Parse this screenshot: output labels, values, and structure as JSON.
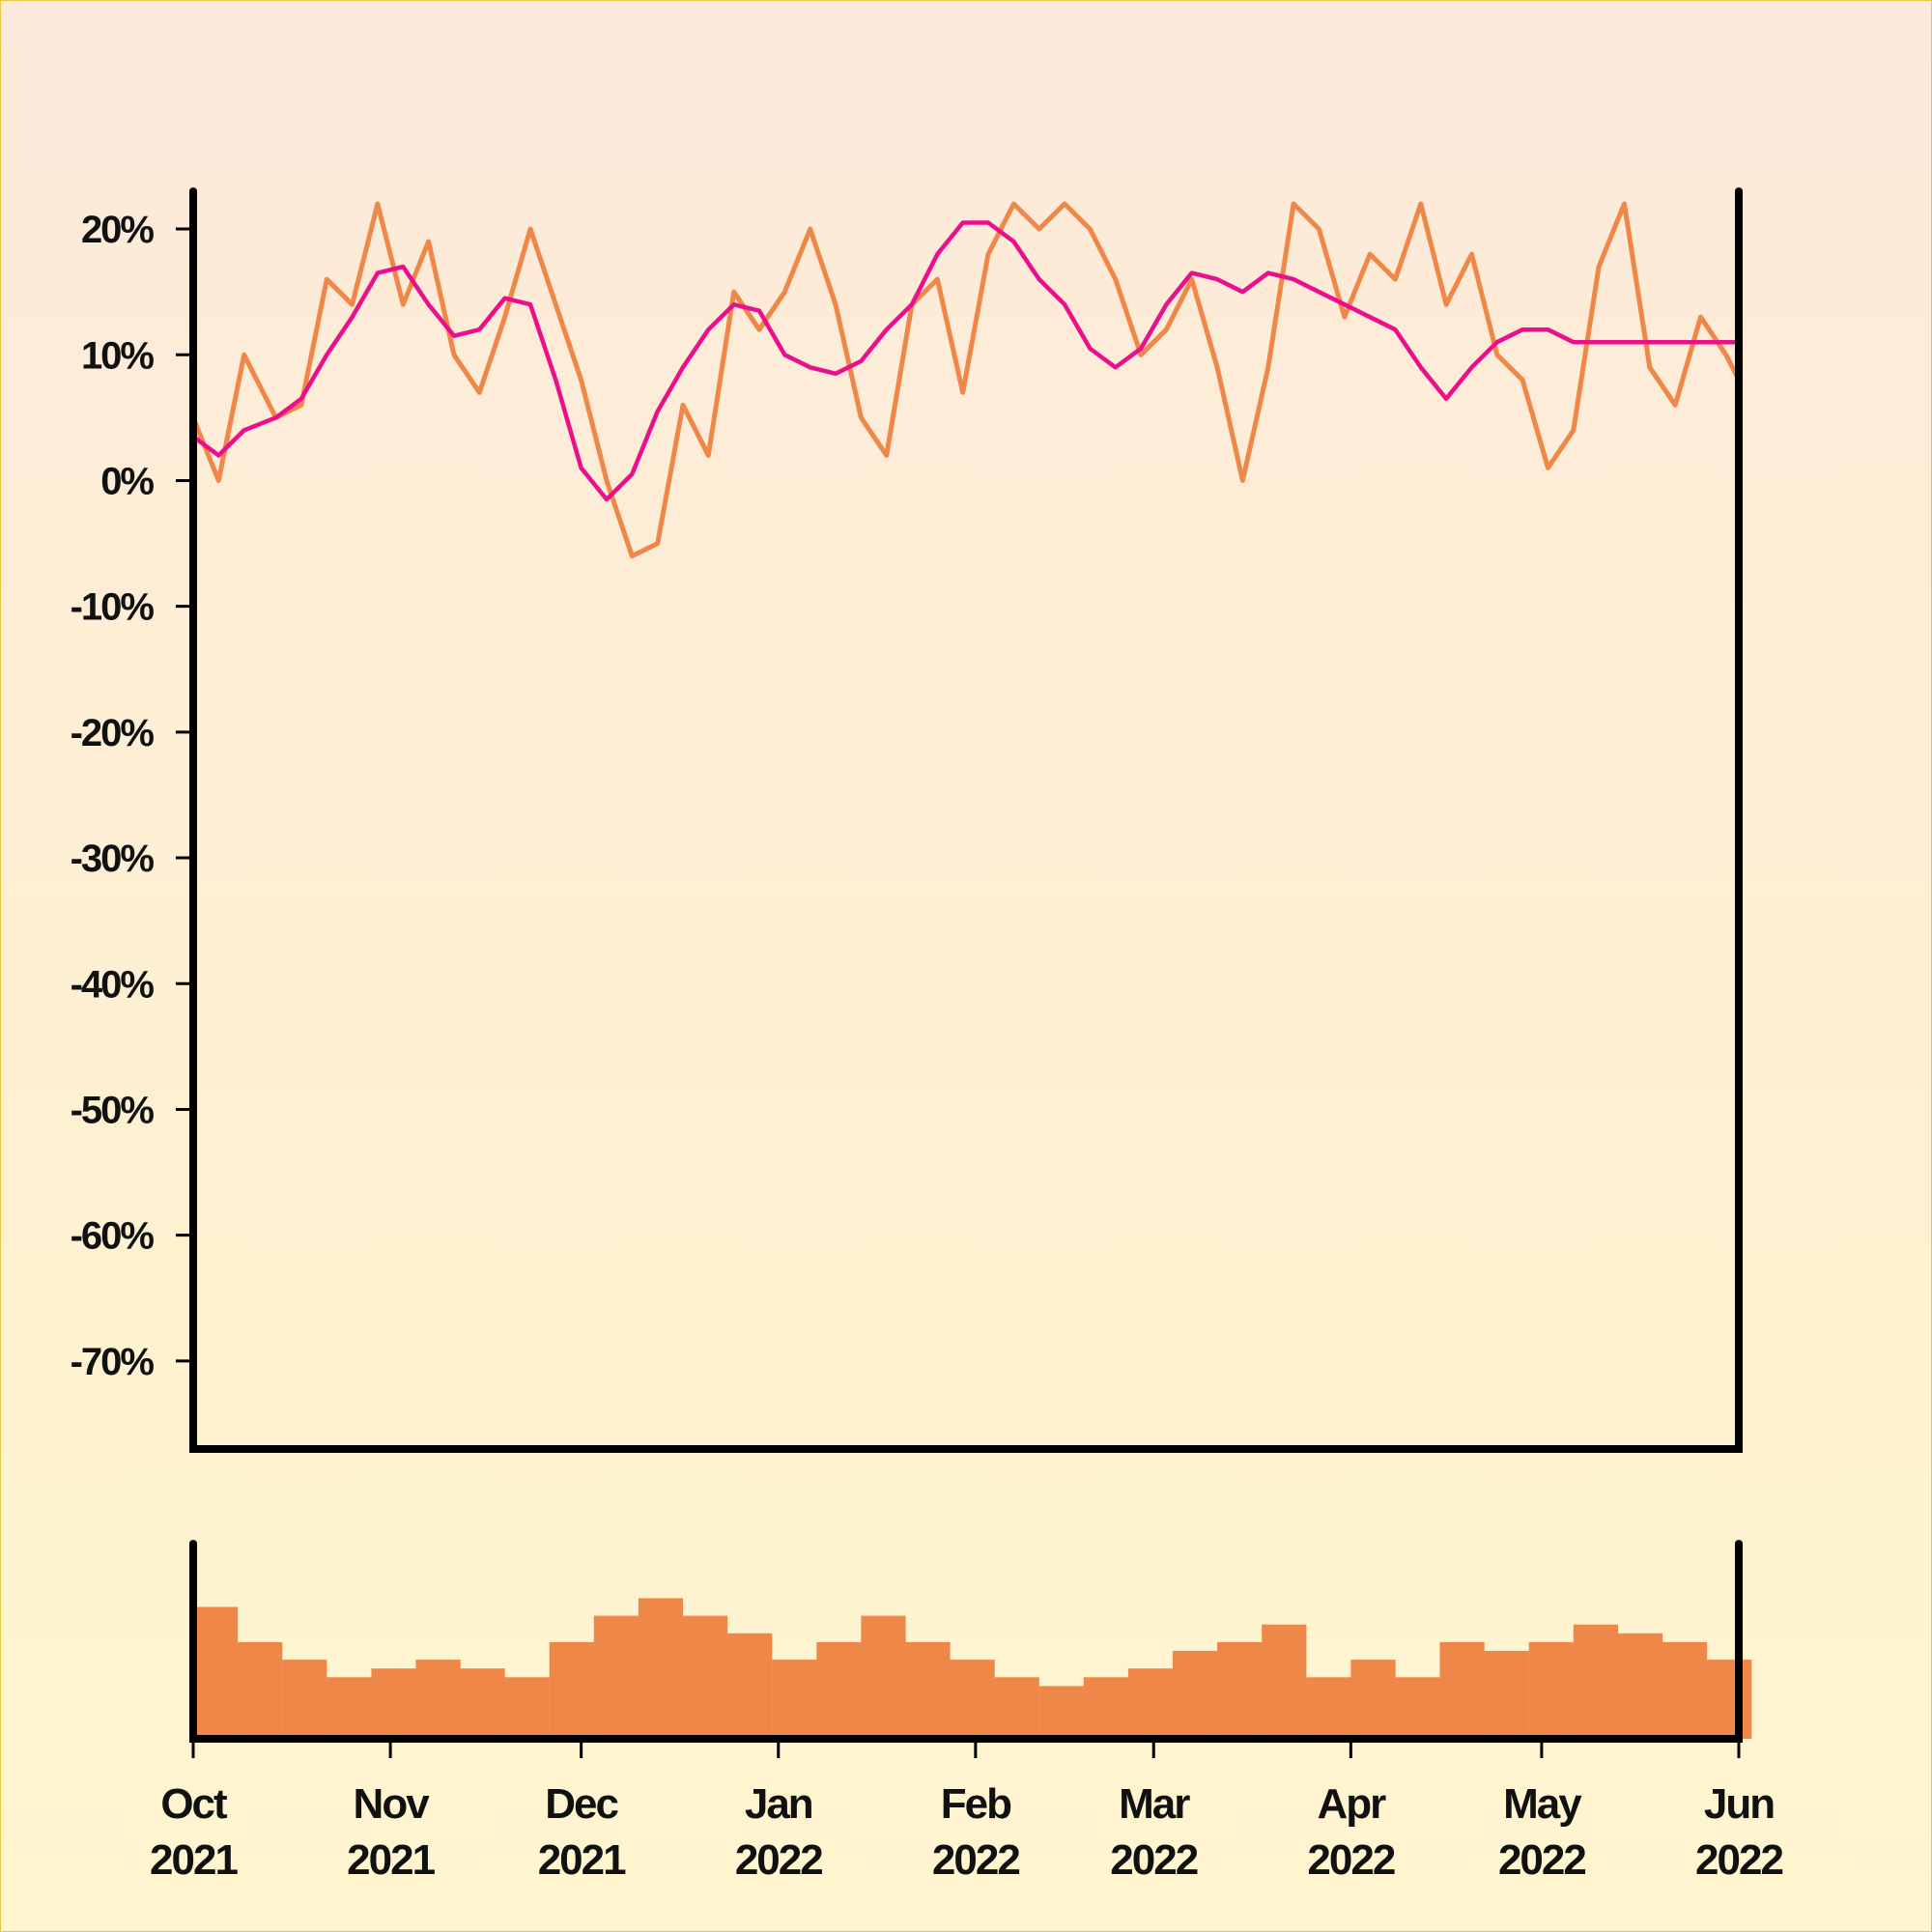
{
  "chart_data": [
    {
      "type": "line",
      "title": "",
      "xlabel": "",
      "ylabel": "",
      "xlim": [
        "2021-10-01",
        "2022-06-01"
      ],
      "ylim": [
        -77,
        23
      ],
      "grid": false,
      "yticks": [
        {
          "value": 20,
          "label": "20%"
        },
        {
          "value": 10,
          "label": "10%"
        },
        {
          "value": 0,
          "label": "0%"
        },
        {
          "value": -10,
          "label": "-10%"
        },
        {
          "value": -20,
          "label": "-20%"
        },
        {
          "value": -30,
          "label": "-30%"
        },
        {
          "value": -40,
          "label": "-40%"
        },
        {
          "value": -50,
          "label": "-50%"
        },
        {
          "value": -60,
          "label": "-60%"
        },
        {
          "value": -70,
          "label": "-70%"
        }
      ],
      "series": [
        {
          "color": "#ee8748",
          "x": [
            "2021-10-01",
            "2021-10-05",
            "2021-10-09",
            "2021-10-14",
            "2021-10-18",
            "2021-10-22",
            "2021-10-26",
            "2021-10-30",
            "2021-11-03",
            "2021-11-07",
            "2021-11-11",
            "2021-11-15",
            "2021-11-19",
            "2021-11-23",
            "2021-11-27",
            "2021-12-01",
            "2021-12-05",
            "2021-12-09",
            "2021-12-13",
            "2021-12-17",
            "2021-12-21",
            "2021-12-25",
            "2021-12-29",
            "2022-01-02",
            "2022-01-06",
            "2022-01-10",
            "2022-01-14",
            "2022-01-18",
            "2022-01-22",
            "2022-01-26",
            "2022-01-30",
            "2022-02-03",
            "2022-02-07",
            "2022-02-11",
            "2022-02-15",
            "2022-02-19",
            "2022-02-23",
            "2022-02-27",
            "2022-03-03",
            "2022-03-07",
            "2022-03-11",
            "2022-03-15",
            "2022-03-19",
            "2022-03-23",
            "2022-03-27",
            "2022-03-31",
            "2022-04-04",
            "2022-04-08",
            "2022-04-12",
            "2022-04-16",
            "2022-04-20",
            "2022-04-24",
            "2022-04-28",
            "2022-05-02",
            "2022-05-06",
            "2022-05-10",
            "2022-05-14",
            "2022-05-18",
            "2022-05-22",
            "2022-05-26",
            "2022-05-30",
            "2022-06-01"
          ],
          "values": [
            5,
            0,
            10,
            5,
            6,
            16,
            14,
            22,
            14,
            19,
            10,
            7,
            13,
            20,
            14,
            8,
            0,
            -6,
            -5,
            6,
            2,
            15,
            12,
            15,
            20,
            14,
            5,
            2,
            14,
            16,
            7,
            18,
            22,
            20,
            22,
            20,
            16,
            10,
            12,
            16,
            9,
            0,
            9,
            22,
            20,
            13,
            18,
            16,
            22,
            14,
            18,
            10,
            8,
            1,
            4,
            17,
            22,
            9,
            6,
            13,
            10,
            8
          ]
        },
        {
          "color": "#ec0f8c",
          "x": [
            "2021-10-01",
            "2021-10-05",
            "2021-10-09",
            "2021-10-14",
            "2021-10-18",
            "2021-10-22",
            "2021-10-26",
            "2021-10-30",
            "2021-11-03",
            "2021-11-07",
            "2021-11-11",
            "2021-11-15",
            "2021-11-19",
            "2021-11-23",
            "2021-11-27",
            "2021-12-01",
            "2021-12-05",
            "2021-12-09",
            "2021-12-13",
            "2021-12-17",
            "2021-12-21",
            "2021-12-25",
            "2021-12-29",
            "2022-01-02",
            "2022-01-06",
            "2022-01-10",
            "2022-01-14",
            "2022-01-18",
            "2022-01-22",
            "2022-01-26",
            "2022-01-30",
            "2022-02-03",
            "2022-02-07",
            "2022-02-11",
            "2022-02-15",
            "2022-02-19",
            "2022-02-23",
            "2022-02-27",
            "2022-03-03",
            "2022-03-07",
            "2022-03-11",
            "2022-03-15",
            "2022-03-19",
            "2022-03-23",
            "2022-03-27",
            "2022-03-31",
            "2022-04-04",
            "2022-04-08",
            "2022-04-12",
            "2022-04-16",
            "2022-04-20",
            "2022-04-24",
            "2022-04-28",
            "2022-05-02",
            "2022-05-06",
            "2022-05-10",
            "2022-05-14",
            "2022-05-18",
            "2022-05-22",
            "2022-05-26",
            "2022-05-30",
            "2022-06-01"
          ],
          "values": [
            3.5,
            2,
            4,
            5,
            6.5,
            10,
            13,
            16.5,
            17,
            14,
            11.5,
            12,
            14.5,
            14,
            8,
            1,
            -1.5,
            0.5,
            5.5,
            9,
            12,
            14,
            13.5,
            10,
            9,
            8.5,
            9.5,
            12,
            14,
            18,
            20.5,
            20.5,
            19,
            16,
            14,
            10.5,
            9,
            10.5,
            14,
            16.5,
            16,
            15,
            16.5,
            16,
            15,
            14,
            13,
            12,
            9,
            6.5,
            9,
            11,
            12,
            12,
            11,
            11,
            11,
            11,
            11,
            11,
            11,
            11
          ]
        }
      ]
    },
    {
      "type": "bar",
      "title": "",
      "xlabel": "",
      "ylabel": "",
      "xlim": [
        "2021-10-01",
        "2022-06-01"
      ],
      "grid": false,
      "color": "#ee8748",
      "x": [
        "2021-10-01",
        "2021-10-08",
        "2021-10-15",
        "2021-10-22",
        "2021-10-29",
        "2021-11-05",
        "2021-11-12",
        "2021-11-19",
        "2021-11-26",
        "2021-12-03",
        "2021-12-10",
        "2021-12-17",
        "2021-12-24",
        "2021-12-31",
        "2022-01-07",
        "2022-01-14",
        "2022-01-21",
        "2022-01-28",
        "2022-02-04",
        "2022-02-11",
        "2022-02-18",
        "2022-02-25",
        "2022-03-04",
        "2022-03-11",
        "2022-03-18",
        "2022-03-25",
        "2022-04-01",
        "2022-04-08",
        "2022-04-15",
        "2022-04-22",
        "2022-04-29",
        "2022-05-06",
        "2022-05-13",
        "2022-05-20",
        "2022-05-27"
      ],
      "values": [
        0.75,
        0.55,
        0.45,
        0.35,
        0.4,
        0.45,
        0.4,
        0.35,
        0.55,
        0.7,
        0.8,
        0.7,
        0.6,
        0.45,
        0.55,
        0.7,
        0.55,
        0.45,
        0.35,
        0.3,
        0.35,
        0.4,
        0.5,
        0.55,
        0.65,
        0.35,
        0.45,
        0.35,
        0.55,
        0.5,
        0.55,
        0.65,
        0.6,
        0.55,
        0.45
      ]
    }
  ],
  "xaxis": {
    "ticks": [
      {
        "date": "2021-10-01",
        "month": "Oct",
        "year": "2021"
      },
      {
        "date": "2021-11-01",
        "month": "Nov",
        "year": "2021"
      },
      {
        "date": "2021-12-01",
        "month": "Dec",
        "year": "2021"
      },
      {
        "date": "2022-01-01",
        "month": "Jan",
        "year": "2022"
      },
      {
        "date": "2022-02-01",
        "month": "Feb",
        "year": "2022"
      },
      {
        "date": "2022-03-01",
        "month": "Mar",
        "year": "2022"
      },
      {
        "date": "2022-04-01",
        "month": "Apr",
        "year": "2022"
      },
      {
        "date": "2022-05-01",
        "month": "May",
        "year": "2022"
      },
      {
        "date": "2022-06-01",
        "month": "Jun",
        "year": "2022"
      }
    ]
  }
}
